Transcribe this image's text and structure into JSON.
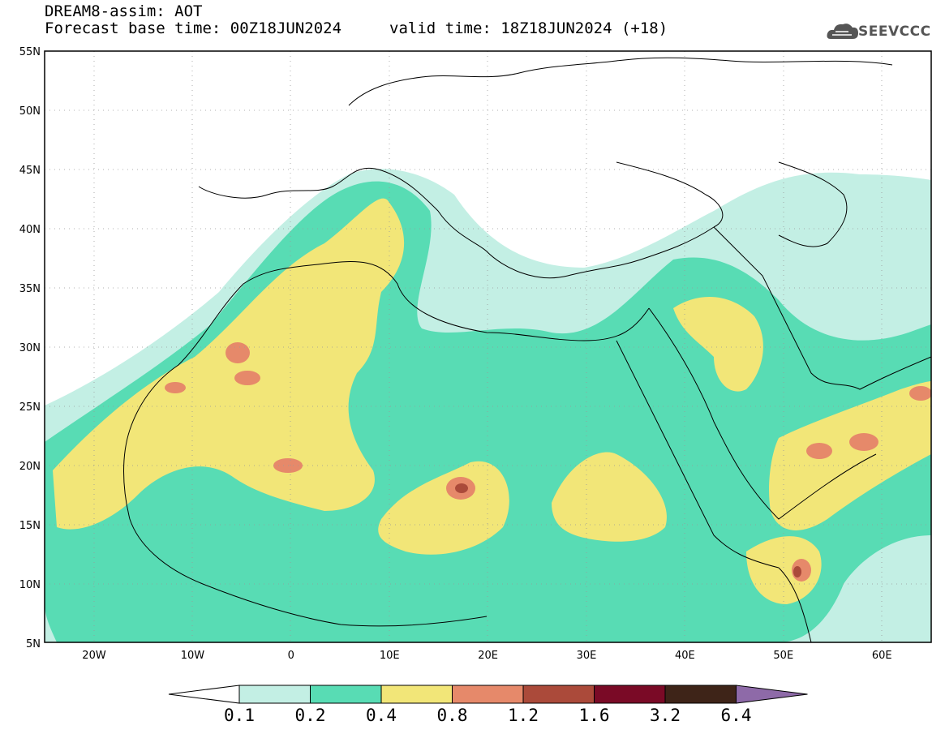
{
  "header": {
    "title": "DREAM8-assim: AOT",
    "base_time": "Forecast base time: 00Z18JUN2024",
    "valid_time": "valid time: 18Z18JUN2024 (+18)"
  },
  "logo": {
    "text": "SEEVCCC",
    "icon": "cloud-icon"
  },
  "axes": {
    "lat_labels": [
      "55N",
      "50N",
      "45N",
      "40N",
      "35N",
      "30N",
      "25N",
      "20N",
      "15N",
      "10N",
      "5N"
    ],
    "lon_labels": [
      "20W",
      "10W",
      "0",
      "10E",
      "20E",
      "30E",
      "40E",
      "50E",
      "60E"
    ],
    "lat_range": [
      5,
      55
    ],
    "lon_range": [
      -25,
      65
    ]
  },
  "colorbar": {
    "labels": [
      "0.1",
      "0.2",
      "0.4",
      "0.8",
      "1.2",
      "1.6",
      "3.2",
      "6.4"
    ],
    "colors": [
      "#c3efe4",
      "#58dcb4",
      "#f2e678",
      "#e6896a",
      "#ab4a3a",
      "#7a0a26",
      "#3e2418",
      "#8e6aa8"
    ]
  }
}
